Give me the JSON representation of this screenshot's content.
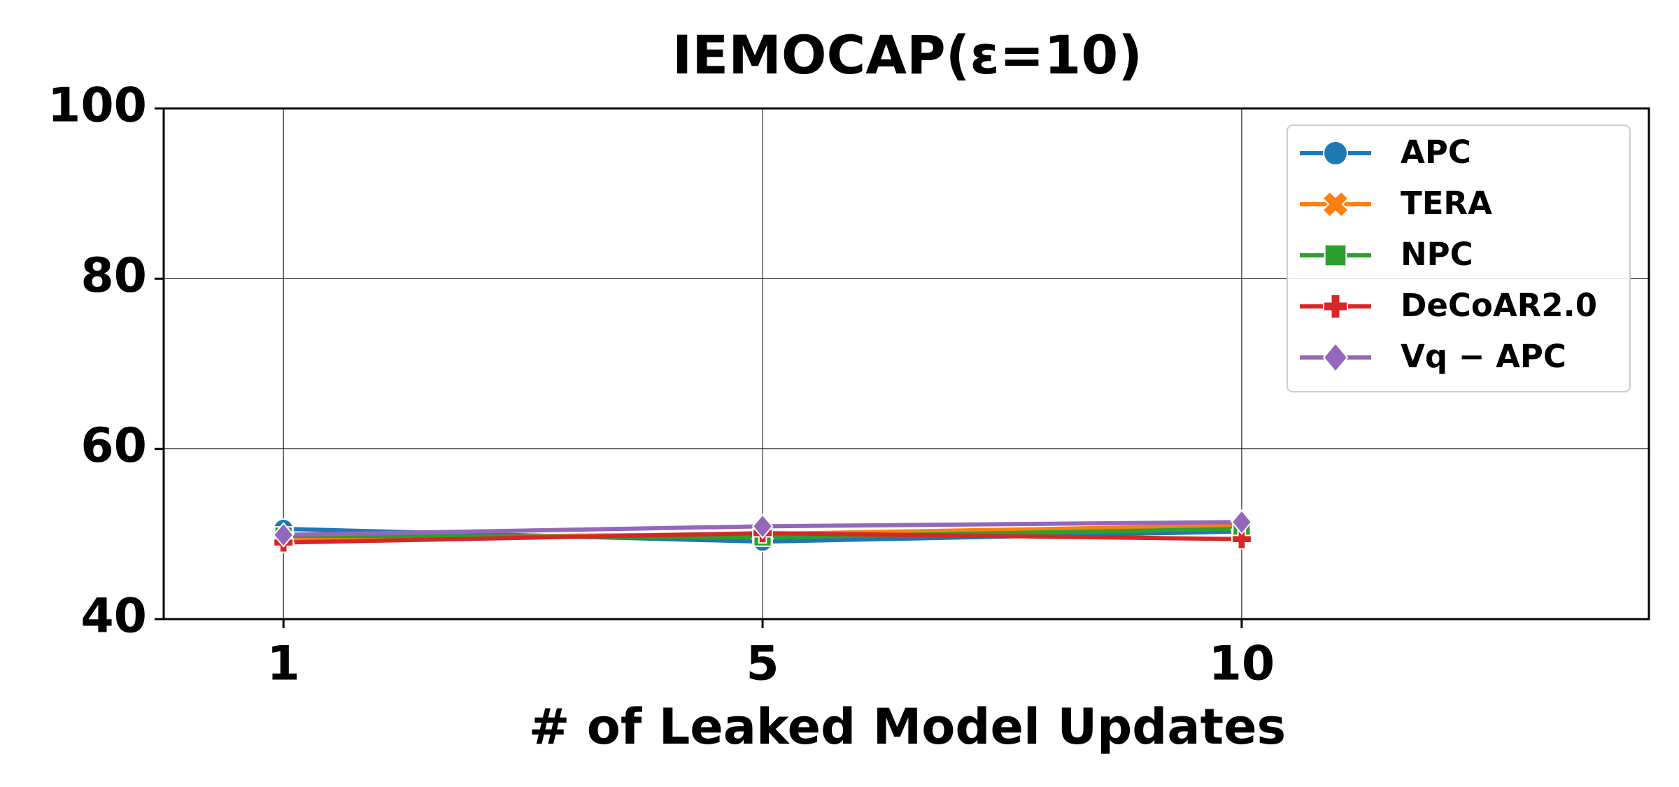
{
  "chart_data": {
    "type": "line",
    "title": "IEMOCAP(ε=10)",
    "x_label": "# of Leaked Model Updates",
    "categories": [
      "1",
      "5",
      "10"
    ],
    "series": [
      {
        "name": "APC",
        "color": "#1f77b4",
        "marker": "circle",
        "values": [
          50.6,
          49.1,
          50.3
        ]
      },
      {
        "name": "TERA",
        "color": "#ff7f0e",
        "marker": "x",
        "values": [
          49.5,
          50.0,
          51.0
        ]
      },
      {
        "name": "NPC",
        "color": "#2ca02c",
        "marker": "square",
        "values": [
          49.8,
          49.6,
          50.6
        ]
      },
      {
        "name": "DeCoAR2.0",
        "color": "#d62728",
        "marker": "plus",
        "values": [
          49.0,
          50.1,
          49.4
        ]
      },
      {
        "name": "Vq − APC",
        "color": "#9467bd",
        "marker": "diamond",
        "values": [
          49.9,
          50.9,
          51.4
        ]
      }
    ],
    "ylim": [
      40,
      100
    ],
    "yticks": [
      40,
      60,
      80,
      100
    ],
    "grid": true,
    "legend": "upper right"
  }
}
